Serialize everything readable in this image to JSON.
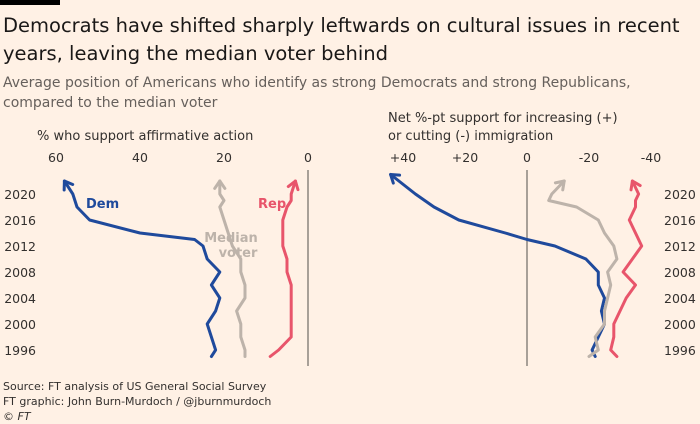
{
  "header": {
    "title": "Democrats have shifted sharply leftwards on cultural issues in recent years, leaving the median voter behind",
    "subtitle": "Average position of Americans who identify as strong Democrats and strong Republicans, compared to the median voter"
  },
  "footer": {
    "source": "Source: FT analysis of US General Social Survey",
    "graphic": "FT graphic: John Burn-Murdoch / @jburnmurdoch",
    "copyright": "© FT"
  },
  "colors": {
    "background": "#fff1e5",
    "dem": "#1f4a9c",
    "rep": "#e8556b",
    "median": "#bdb3aa",
    "zero_line": "#8c857f",
    "text": "#33302e"
  },
  "series_labels": {
    "dem": "Dem",
    "rep": "Rep",
    "median_line1": "Median",
    "median_line2": "voter"
  },
  "chart_data": [
    {
      "type": "line",
      "panel": "left",
      "title": "% who support affirmative action",
      "x_axis": {
        "position": "top",
        "reversed": true,
        "min": 0,
        "max": 62,
        "ticks": [
          60,
          40,
          20,
          0
        ]
      },
      "y_axis": {
        "position": "left",
        "min": 1995,
        "max": 2022,
        "ticks": [
          2020,
          2016,
          2012,
          2008,
          2004,
          2000,
          1996
        ]
      },
      "grid": false,
      "zero_line": 0,
      "series": [
        {
          "name": "Dem",
          "color": "#1f4a9c",
          "arrow": true,
          "x": [
            23,
            22,
            23,
            24,
            22,
            21,
            23,
            21,
            24,
            25,
            27,
            40,
            52,
            55,
            56,
            58
          ],
          "y": [
            1995,
            1996,
            1998,
            2000,
            2002,
            2004,
            2006,
            2008,
            2010,
            2012,
            2013,
            2014,
            2016,
            2018,
            2020,
            2022
          ]
        },
        {
          "name": "Median voter",
          "color": "#bdb3aa",
          "arrow": true,
          "x": [
            15,
            15,
            16,
            16,
            17,
            15,
            15,
            16,
            16,
            18,
            19,
            20,
            21,
            20,
            21,
            21
          ],
          "y": [
            1995,
            1996,
            1998,
            2000,
            2002,
            2004,
            2006,
            2008,
            2010,
            2012,
            2014,
            2016,
            2018,
            2019,
            2020,
            2022
          ]
        },
        {
          "name": "Rep",
          "color": "#e8556b",
          "arrow": true,
          "x": [
            9,
            7,
            4,
            4,
            4,
            4,
            4,
            5,
            5,
            6,
            6,
            6,
            5,
            4,
            4,
            3
          ],
          "y": [
            1995,
            1996,
            1998,
            2000,
            2002,
            2004,
            2006,
            2008,
            2010,
            2012,
            2014,
            2016,
            2018,
            2019,
            2020,
            2022
          ]
        }
      ]
    },
    {
      "type": "line",
      "panel": "right",
      "title_line1": "Net %-pt support for increasing (+)",
      "title_line2": "or cutting (-) immigration",
      "x_axis": {
        "position": "top",
        "reversed": true,
        "min": -45,
        "max": 45,
        "ticks": [
          40,
          20,
          0,
          -20,
          -40
        ]
      },
      "y_axis": {
        "position": "right",
        "min": 1995,
        "max": 2022,
        "ticks": [
          2020,
          2016,
          2012,
          2008,
          2004,
          2000,
          1996
        ]
      },
      "grid": false,
      "zero_line": 0,
      "series": [
        {
          "name": "Dem",
          "color": "#1f4a9c",
          "arrow": true,
          "x": [
            -22,
            -21,
            -23,
            -25,
            -24,
            -25,
            -23,
            -23,
            -19,
            -9,
            0,
            7,
            22,
            30,
            36,
            44
          ],
          "y": [
            1995,
            1996,
            1998,
            2000,
            2002,
            2004,
            2006,
            2008,
            2010,
            2012,
            2013,
            2014,
            2016,
            2018,
            2020,
            2023
          ]
        },
        {
          "name": "Median voter",
          "color": "#bdb3aa",
          "arrow": true,
          "x": [
            -20,
            -23,
            -22,
            -25,
            -25,
            -26,
            -27,
            -26,
            -29,
            -28,
            -25,
            -23,
            -16,
            -7,
            -8,
            -12
          ],
          "y": [
            1995,
            1996,
            1998,
            2000,
            2002,
            2004,
            2006,
            2008,
            2010,
            2012,
            2014,
            2016,
            2018,
            2019,
            2020,
            2022
          ]
        },
        {
          "name": "Rep",
          "color": "#e8556b",
          "arrow": true,
          "x": [
            -29,
            -27,
            -28,
            -28,
            -30,
            -32,
            -35,
            -31,
            -34,
            -37,
            -35,
            -33,
            -35,
            -35,
            -36,
            -34
          ],
          "y": [
            1995,
            1996,
            1998,
            2000,
            2002,
            2004,
            2006,
            2008,
            2010,
            2012,
            2014,
            2016,
            2018,
            2019,
            2020,
            2022
          ]
        }
      ]
    }
  ]
}
